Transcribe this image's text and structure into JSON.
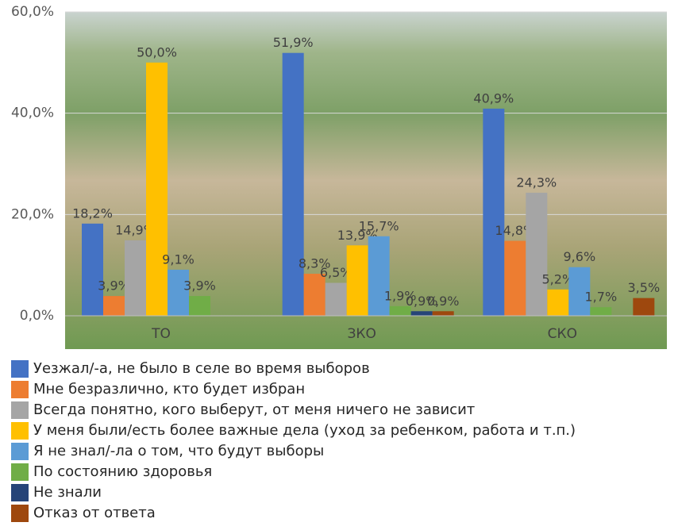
{
  "chart_data": {
    "type": "bar",
    "categories": [
      "ТО",
      "ЗКО",
      "СКО"
    ],
    "series": [
      {
        "name": "Уезжал/-а, не было в селе во время выборов",
        "color": "#4472c4",
        "values": [
          18.2,
          51.9,
          40.9
        ],
        "value_labels": [
          "18,2%",
          "51,9%",
          "40,9%"
        ]
      },
      {
        "name": "Мне безразлично, кто будет избран",
        "color": "#ed7d31",
        "values": [
          3.9,
          8.3,
          14.8
        ],
        "value_labels": [
          "3,9%",
          "8,3%",
          "14,8%"
        ]
      },
      {
        "name": "Всегда понятно, кого выберут, от меня ничего не зависит",
        "color": "#a5a5a5",
        "values": [
          14.9,
          6.5,
          24.3
        ],
        "value_labels": [
          "14,9%",
          "6,5%",
          "24,3%"
        ]
      },
      {
        "name": "У меня были/есть более важные дела (уход за ребенком, работа и т.п.)",
        "color": "#ffc000",
        "values": [
          50.0,
          13.9,
          5.2
        ],
        "value_labels": [
          "50,0%",
          "13,9%",
          "5,2%"
        ]
      },
      {
        "name": "Я не знал/-ла о том, что будут выборы",
        "color": "#5b9bd5",
        "values": [
          9.1,
          15.7,
          9.6
        ],
        "value_labels": [
          "9,1%",
          "15,7%",
          "9,6%"
        ]
      },
      {
        "name": "По состоянию здоровья",
        "color": "#70ad47",
        "values": [
          3.9,
          1.9,
          1.7
        ],
        "value_labels": [
          "3,9%",
          "1,9%",
          "1,7%"
        ]
      },
      {
        "name": "Не знали",
        "color": "#264478",
        "values": [
          null,
          0.9,
          null
        ],
        "value_labels": [
          null,
          "0,9%",
          null
        ]
      },
      {
        "name": "Отказ от ответа",
        "color": "#9e480e",
        "values": [
          null,
          0.9,
          3.5
        ],
        "value_labels": [
          null,
          "0,9%",
          "3,5%"
        ]
      }
    ],
    "ylim": [
      0,
      60
    ],
    "yticks": [
      {
        "value": 0,
        "label": "0,0%"
      },
      {
        "value": 20,
        "label": "20,0%"
      },
      {
        "value": 40,
        "label": "40,0%"
      },
      {
        "value": 60,
        "label": "60,0%"
      }
    ],
    "grid": true
  }
}
